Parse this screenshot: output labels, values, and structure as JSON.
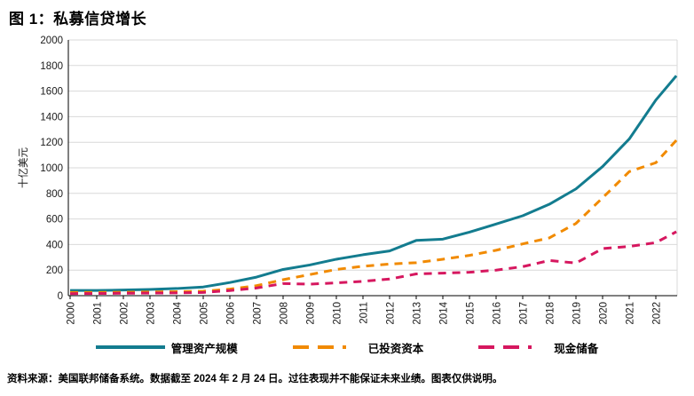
{
  "header": {
    "title": "图 1：私募信贷增长"
  },
  "footer": {
    "source_note": "资料来源：美国联邦储备系统。数据截至 2024 年 2 月 24 日。过往表现并不能保证未来业绩。图表仅供说明。"
  },
  "colors": {
    "aum": "#137c8f",
    "invested_capital": "#f18a00",
    "cash_reserves": "#d6175f",
    "grid": "#d9d9d9",
    "axis": "#000000",
    "tick_text": "#1a1a1a"
  },
  "chart_data": {
    "type": "line",
    "title": "图 1：私募信贷增长",
    "xlabel": "",
    "ylabel": "十亿美元",
    "ylim": [
      0,
      2000
    ],
    "y_ticks": [
      0,
      200,
      400,
      600,
      800,
      1000,
      1200,
      1400,
      1600,
      1800,
      2000
    ],
    "x_tick_labels": [
      "2000",
      "2001",
      "2002",
      "2003",
      "2004",
      "2005",
      "2006",
      "2007",
      "2008",
      "2009",
      "2010",
      "2011",
      "2012",
      "2013",
      "2014",
      "2015",
      "2016",
      "2017",
      "2018",
      "2019",
      "2020",
      "2021",
      "2022"
    ],
    "grid": "horizontal",
    "legend_position": "bottom",
    "x": [
      2000,
      2001,
      2002,
      2003,
      2004,
      2005,
      2006,
      2007,
      2008,
      2009,
      2010,
      2011,
      2012,
      2013,
      2014,
      2015,
      2016,
      2017,
      2018,
      2019,
      2020,
      2021,
      2022,
      2022.77
    ],
    "series": [
      {
        "name": "管理资产规模",
        "slug": "aum",
        "style": "solid",
        "color": "#137c8f",
        "values": [
          41,
          41,
          44,
          49,
          56,
          68,
          103,
          145,
          205,
          240,
          285,
          320,
          350,
          432,
          442,
          497,
          560,
          625,
          715,
          835,
          1010,
          1225,
          1530,
          1720
        ]
      },
      {
        "name": "已投资资本",
        "slug": "invested-capital",
        "style": "dashed",
        "color": "#f18a00",
        "values": [
          25,
          25,
          27,
          29,
          31,
          35,
          51,
          78,
          125,
          165,
          205,
          230,
          247,
          258,
          285,
          315,
          355,
          405,
          452,
          565,
          765,
          970,
          1040,
          1215
        ]
      },
      {
        "name": "现金储备",
        "slug": "cash-reserves",
        "style": "dashed",
        "color": "#d6175f",
        "values": [
          16,
          17,
          19,
          20,
          22,
          25,
          40,
          60,
          95,
          90,
          100,
          112,
          130,
          170,
          176,
          183,
          200,
          227,
          275,
          255,
          368,
          385,
          415,
          500
        ]
      }
    ]
  }
}
